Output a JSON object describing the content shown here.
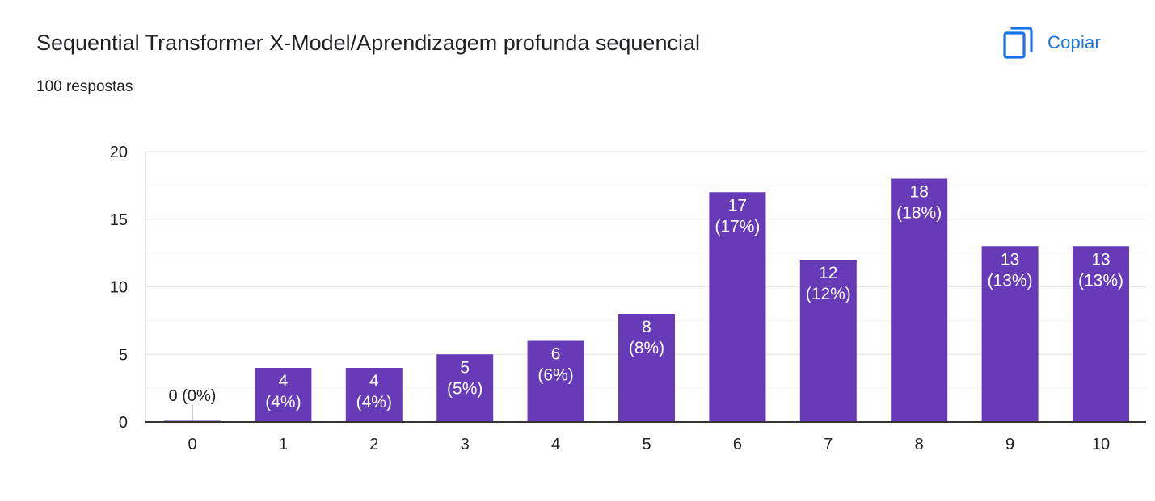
{
  "header": {
    "title": "Sequential Transformer X-Model/Aprendizagem profunda sequencial",
    "subtitle": "100 respostas",
    "copy_label": "Copiar",
    "copy_icon": "copy-icon"
  },
  "colors": {
    "bar": "#673ab7",
    "accent": "#1a73e8",
    "grid": "#e6e6e6",
    "axis": "#333333",
    "text": "#222222"
  },
  "chart_data": {
    "type": "bar",
    "categories": [
      "0",
      "1",
      "2",
      "3",
      "4",
      "5",
      "6",
      "7",
      "8",
      "9",
      "10"
    ],
    "values": [
      0,
      4,
      4,
      5,
      6,
      8,
      17,
      12,
      18,
      13,
      13
    ],
    "percents": [
      "0%",
      "4%",
      "4%",
      "5%",
      "6%",
      "8%",
      "17%",
      "12%",
      "18%",
      "13%",
      "13%"
    ],
    "yticks": [
      0,
      5,
      10,
      15,
      20
    ],
    "ylim": [
      0,
      20
    ],
    "grid": true,
    "legend": "none"
  }
}
